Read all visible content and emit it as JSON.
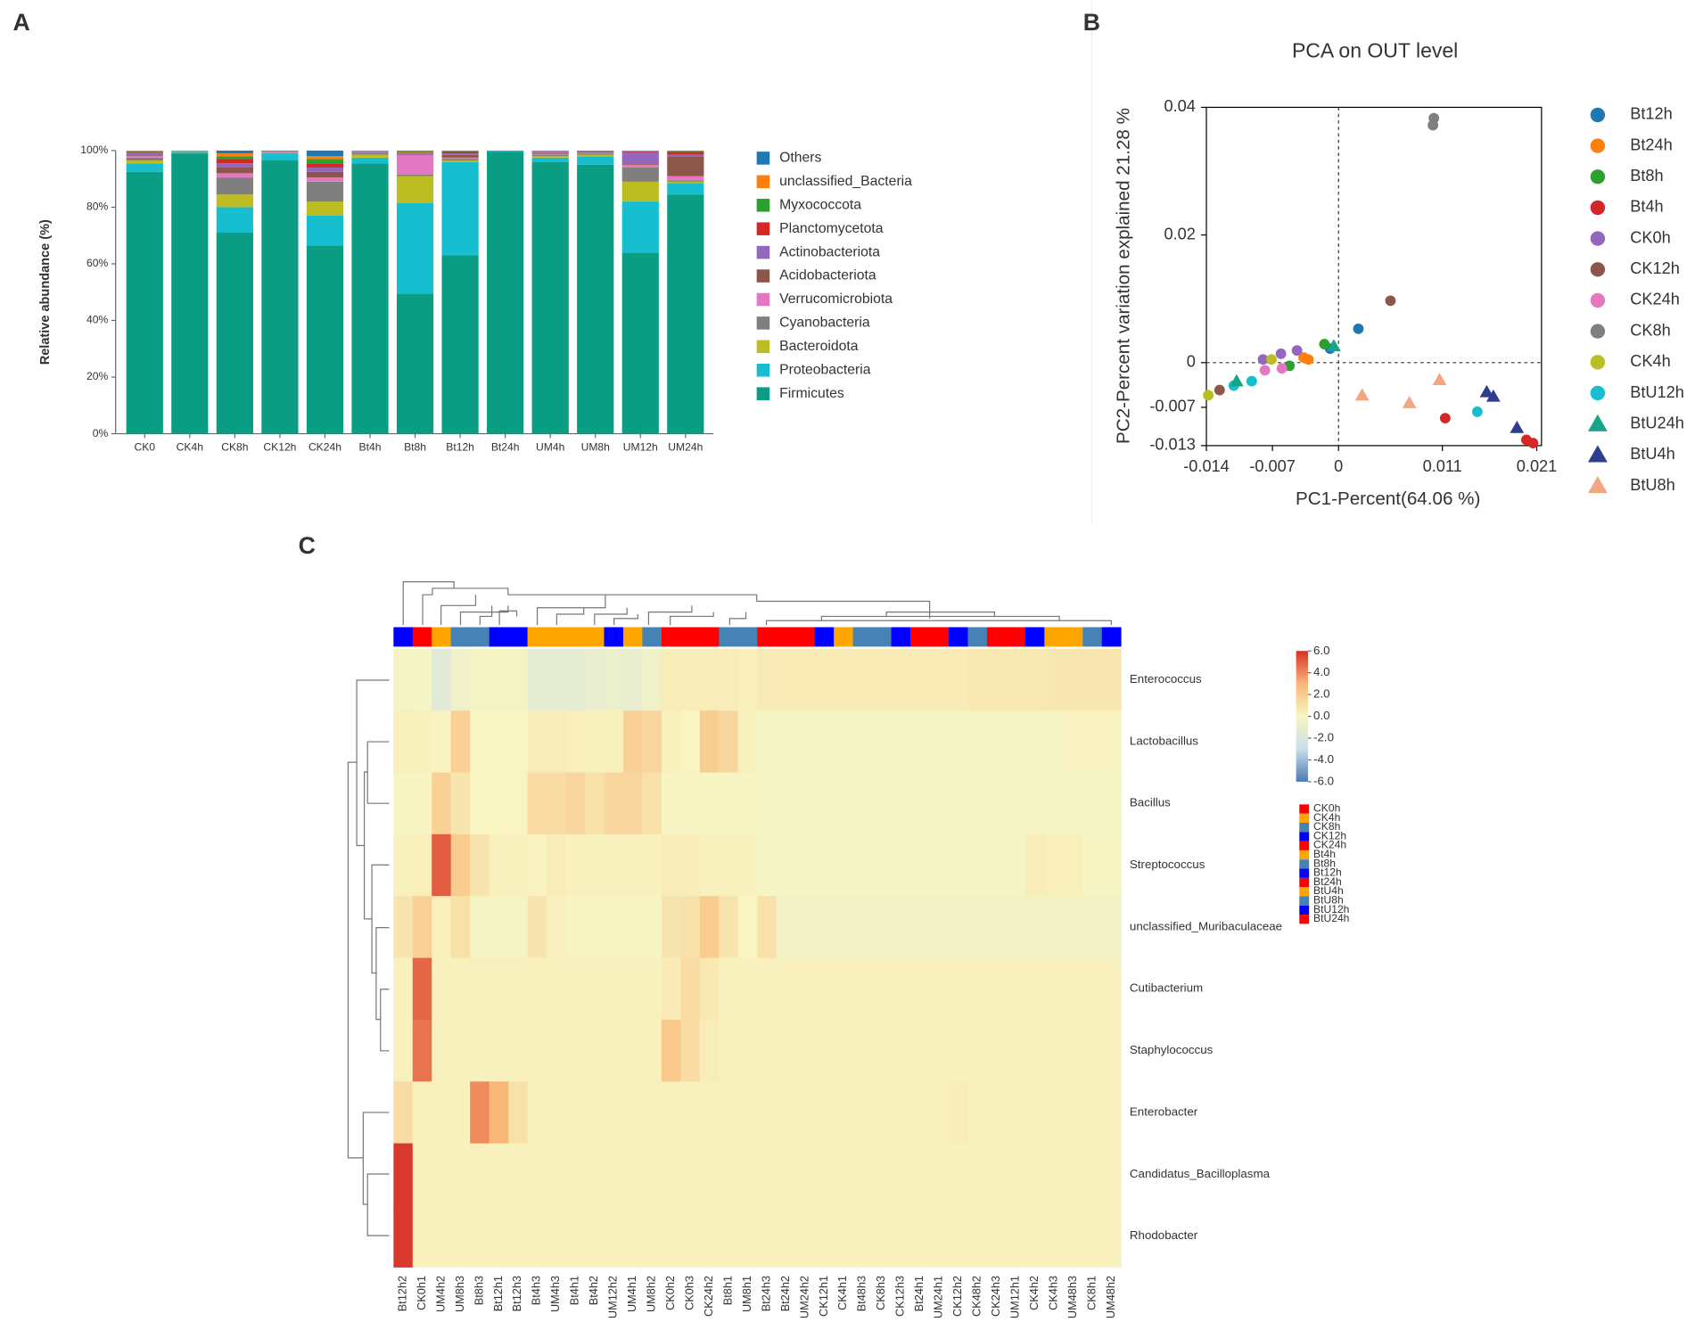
{
  "chart_data": [
    {
      "type": "bar",
      "stacked": true,
      "panel": "A",
      "ylabel": "Relative abundance (%)",
      "categories": [
        "CK0",
        "CK4h",
        "CK8h",
        "CK12h",
        "CK24h",
        "Bt4h",
        "Bt8h",
        "Bt12h",
        "Bt24h",
        "UM4h",
        "UM8h",
        "UM12h",
        "UM24h"
      ],
      "series": [
        {
          "name": "Firmicutes",
          "color": "#0a9d83",
          "values": [
            92.5,
            99,
            71,
            96.5,
            66.5,
            95.5,
            49.5,
            63,
            99.5,
            96,
            95,
            64,
            84.5
          ]
        },
        {
          "name": "Proteobacteria",
          "color": "#17becf",
          "values": [
            3,
            0.5,
            9,
            2.5,
            10.5,
            2,
            32,
            33,
            0.2,
            1.5,
            3,
            18,
            4
          ]
        },
        {
          "name": "Bacteroidota",
          "color": "#bcbd22",
          "values": [
            1,
            0.1,
            4.5,
            0.2,
            5,
            1,
            9.5,
            0.5,
            0.1,
            0.5,
            0.5,
            7,
            0.5
          ]
        },
        {
          "name": "Cyanobacteria",
          "color": "#7f7f7f",
          "values": [
            1,
            0.1,
            6,
            0.2,
            7,
            0.5,
            0.5,
            0.5,
            0,
            0.5,
            0.5,
            5,
            0.5
          ]
        },
        {
          "name": "Verrucomicrobiota",
          "color": "#e377c2",
          "values": [
            0.5,
            0,
            1.5,
            0.1,
            1.5,
            0.2,
            7,
            0.5,
            0,
            0.3,
            0.3,
            1,
            1.5
          ]
        },
        {
          "name": "Acidobacteriota",
          "color": "#8c564b",
          "values": [
            0.3,
            0,
            2,
            0,
            2,
            0.2,
            0.3,
            1,
            0,
            0.3,
            0.2,
            0.5,
            7
          ]
        },
        {
          "name": "Actinobacteriota",
          "color": "#9467bd",
          "values": [
            1,
            0.1,
            1.5,
            0.1,
            1.5,
            0.2,
            0.3,
            0.5,
            0,
            0.5,
            0.2,
            4,
            0.5
          ]
        },
        {
          "name": "Planctomycetota",
          "color": "#d62728",
          "values": [
            0.2,
            0,
            1.5,
            0,
            1.5,
            0.1,
            0.2,
            0.5,
            0,
            0.1,
            0.1,
            0.2,
            1
          ]
        },
        {
          "name": "Myxococcota",
          "color": "#2ca02c",
          "values": [
            0.2,
            0,
            1,
            0,
            1.5,
            0.1,
            0.2,
            0.2,
            0,
            0.1,
            0.1,
            0.1,
            0.3
          ]
        },
        {
          "name": "unclassified_Bacteria",
          "color": "#ff7f0e",
          "values": [
            0.3,
            0.1,
            1,
            0.2,
            1,
            0.1,
            0.3,
            0.1,
            0,
            0.1,
            0,
            0.1,
            0.1
          ]
        },
        {
          "name": "Others",
          "color": "#1f77b4",
          "values": [
            0,
            0.1,
            1,
            0.2,
            2,
            0.1,
            0.2,
            0.2,
            0.2,
            0.1,
            0.1,
            0.1,
            0.1
          ]
        }
      ],
      "ylim": [
        0,
        100
      ],
      "yticks": [
        {
          "value": 0,
          "label": "0%"
        },
        {
          "value": 20,
          "label": "20%"
        },
        {
          "value": 40,
          "label": "40%"
        },
        {
          "value": 60,
          "label": "60%"
        },
        {
          "value": 80,
          "label": "80%"
        },
        {
          "value": 100,
          "label": "100%"
        }
      ],
      "legend": "right"
    },
    {
      "type": "scatter",
      "panel": "B",
      "title": "PCA on OUT level",
      "xlabel": "PC1-Percent(64.06 %)",
      "ylabel": "PC2-Percent variation explained 21.28 %",
      "xlim": [
        -0.014,
        0.0215
      ],
      "ylim": [
        -0.013,
        0.04
      ],
      "xticks": [
        -0.014,
        -0.007,
        0,
        0.011,
        0.021
      ],
      "yticks": [
        -0.013,
        -0.007,
        0,
        0.02,
        0.04
      ],
      "dashed_zero_lines": true,
      "legend": "right",
      "series": [
        {
          "name": "Bt12h",
          "color": "#1f77b4",
          "marker": "circle",
          "x": [
            0.0021,
            -0.0009
          ],
          "y": [
            0.0053,
            0.0022
          ]
        },
        {
          "name": "Bt24h",
          "color": "#ff7f0e",
          "marker": "circle",
          "x": [
            -0.0032,
            -0.0037
          ],
          "y": [
            0.0005,
            0.0008
          ]
        },
        {
          "name": "Bt8h",
          "color": "#2ca02c",
          "marker": "circle",
          "x": [
            -0.0015,
            -0.0052
          ],
          "y": [
            0.0029,
            -0.0005
          ]
        },
        {
          "name": "Bt4h",
          "color": "#d62728",
          "marker": "circle",
          "x": [
            0.0113,
            0.0199,
            0.0206
          ],
          "y": [
            -0.0087,
            -0.0121,
            -0.0126
          ]
        },
        {
          "name": "CK0h",
          "color": "#9467bd",
          "marker": "circle",
          "x": [
            -0.008,
            -0.0044,
            -0.0061
          ],
          "y": [
            0.0005,
            0.0019,
            0.0014
          ]
        },
        {
          "name": "CK12h",
          "color": "#8c564b",
          "marker": "circle",
          "x": [
            0.0055,
            -0.0126
          ],
          "y": [
            0.0097,
            -0.0043
          ]
        },
        {
          "name": "CK24h",
          "color": "#e377c2",
          "marker": "circle",
          "x": [
            -0.0078,
            -0.006
          ],
          "y": [
            -0.0012,
            -0.0009
          ]
        },
        {
          "name": "CK8h",
          "color": "#7f7f7f",
          "marker": "circle",
          "x": [
            0.0101,
            0.01
          ],
          "y": [
            0.0383,
            0.0372
          ]
        },
        {
          "name": "CK4h",
          "color": "#bcbd22",
          "marker": "circle",
          "x": [
            -0.0138,
            -0.0071
          ],
          "y": [
            -0.0051,
            0.0005
          ]
        },
        {
          "name": "BtU12h",
          "color": "#17becf",
          "marker": "circle",
          "x": [
            0.0147,
            -0.0092,
            -0.0111
          ],
          "y": [
            -0.0077,
            -0.0029,
            -0.0036
          ]
        },
        {
          "name": "BtU24h",
          "color": "#17a589",
          "marker": "triangle",
          "x": [
            -0.0108,
            -0.0005
          ],
          "y": [
            -0.0029,
            0.0026
          ]
        },
        {
          "name": "BtU4h",
          "color": "#2c3e8c",
          "marker": "triangle",
          "x": [
            0.0157,
            0.0164,
            0.0189
          ],
          "y": [
            -0.0046,
            -0.0053,
            -0.0102
          ]
        },
        {
          "name": "BtU8h",
          "color": "#f4a582",
          "marker": "triangle",
          "x": [
            0.0025,
            0.0075,
            0.0107
          ],
          "y": [
            -0.0051,
            -0.0063,
            -0.0027
          ]
        }
      ]
    },
    {
      "type": "heatmap",
      "panel": "C",
      "x": [
        "Bt12h2",
        "CK0h1",
        "UM4h2",
        "UM8h3",
        "Bt8h3",
        "Bt12h1",
        "Bt12h3",
        "Bt4h3",
        "UM4h3",
        "Bt4h1",
        "Bt4h2",
        "UM12h2",
        "UM4h1",
        "UM8h2",
        "CK0h2",
        "CK0h3",
        "CK24h2",
        "Bt8h1",
        "UM8h1",
        "Bt24h3",
        "Bt24h2",
        "UM24h2",
        "CK12h1",
        "CK4h1",
        "Bt48h3",
        "CK8h3",
        "CK12h3",
        "Bt24h1",
        "UM24h1",
        "CK12h2",
        "CK48h2",
        "CK24h3",
        "UM12h1",
        "CK4h2",
        "CK4h3",
        "UM48h3",
        "CK8h1",
        "UM48h2"
      ],
      "y": [
        "Enterococcus",
        "Lactobacillus",
        "Bacillus",
        "Streptococcus",
        "unclassified_Muribaculaceae",
        "Cutibacterium",
        "Staphylococcus",
        "Enterobacter",
        "Candidatus_Bacilloplasma",
        "Rhodobacter"
      ],
      "z": [
        [
          -0.3,
          -0.2,
          -1.5,
          -0.5,
          -0.3,
          -0.3,
          -0.3,
          -1.2,
          -1.2,
          -1.2,
          -1.0,
          -0.8,
          -1.0,
          -0.5,
          0.4,
          0.4,
          0.4,
          0.4,
          0.3,
          0.5,
          0.5,
          0.5,
          0.5,
          0.5,
          0.5,
          0.5,
          0.5,
          0.5,
          0.5,
          0.5,
          0.6,
          0.6,
          0.6,
          0.6,
          0.7,
          0.7,
          0.7,
          0.7
        ],
        [
          0.3,
          0.2,
          0.1,
          1.8,
          0,
          0,
          0,
          0.4,
          0.4,
          0.3,
          0.2,
          0.2,
          1.8,
          1.5,
          0.3,
          0,
          2.0,
          1.5,
          0.2,
          -0.2,
          -0.2,
          -0.2,
          -0.2,
          -0.2,
          -0.2,
          -0.2,
          -0.2,
          -0.2,
          -0.2,
          -0.2,
          -0.2,
          -0.2,
          -0.2,
          -0.2,
          -0.2,
          0.1,
          0.1,
          0.1
        ],
        [
          -0.1,
          -0.1,
          1.8,
          0.8,
          0,
          0,
          0,
          1.2,
          1.2,
          1.5,
          1.0,
          1.5,
          1.5,
          1.0,
          -0.1,
          -0.1,
          -0.1,
          -0.1,
          -0.1,
          -0.2,
          -0.2,
          -0.2,
          -0.2,
          -0.2,
          -0.2,
          -0.2,
          -0.2,
          -0.2,
          -0.2,
          -0.2,
          -0.2,
          -0.2,
          -0.2,
          -0.2,
          -0.2,
          -0.2,
          -0.2,
          -0.2
        ],
        [
          0.2,
          0.3,
          5.0,
          2.0,
          0.8,
          0.2,
          0.2,
          0.1,
          0.4,
          0.2,
          0.2,
          0.2,
          0.2,
          0.2,
          0.4,
          0.4,
          0.2,
          0.2,
          0.2,
          -0.2,
          -0.2,
          -0.2,
          -0.2,
          -0.2,
          -0.2,
          -0.2,
          -0.2,
          -0.2,
          -0.2,
          -0.2,
          -0.2,
          -0.2,
          -0.2,
          0.4,
          0.3,
          0.3,
          -0.1,
          -0.1
        ],
        [
          0.8,
          1.8,
          0.3,
          1.0,
          -0.2,
          -0.2,
          -0.2,
          0.8,
          0.2,
          -0.1,
          -0.1,
          -0.1,
          -0.1,
          -0.1,
          0.8,
          1.0,
          2.0,
          0.8,
          0,
          1.0,
          -0.4,
          -0.4,
          -0.4,
          -0.4,
          -0.4,
          -0.4,
          -0.4,
          -0.4,
          -0.4,
          -0.4,
          -0.4,
          -0.4,
          -0.4,
          -0.4,
          -0.4,
          -0.4,
          -0.4,
          -0.4
        ],
        [
          0.2,
          4.8,
          0.2,
          0.2,
          0.2,
          0.2,
          0.2,
          0.2,
          0.2,
          0.2,
          0.2,
          0.2,
          0.2,
          0.2,
          0.5,
          1.2,
          0.6,
          0.2,
          0.2,
          0.2,
          0.2,
          0.2,
          0.2,
          0.2,
          0.2,
          0.2,
          0.2,
          0.2,
          0.2,
          0.2,
          0.2,
          0.2,
          0.2,
          0.2,
          0.2,
          0.2,
          0.2,
          0.2
        ],
        [
          0.2,
          4.5,
          0.2,
          0.2,
          0.2,
          0.2,
          0.2,
          0.2,
          0.2,
          0.2,
          0.2,
          0.2,
          0.2,
          0.2,
          2.2,
          1.2,
          0.4,
          0.2,
          0.2,
          0.2,
          0.2,
          0.2,
          0.2,
          0.2,
          0.2,
          0.2,
          0.2,
          0.2,
          0.2,
          0.2,
          0.2,
          0.2,
          0.2,
          0.2,
          0.2,
          0.2,
          0.2,
          0.2
        ],
        [
          1.2,
          0.2,
          0.2,
          0.2,
          4.0,
          3.0,
          1.0,
          0.2,
          0.2,
          0.2,
          0.2,
          0.2,
          0.2,
          0.2,
          0.2,
          0.2,
          0.2,
          0.2,
          0.2,
          0.2,
          0.2,
          0.2,
          0.2,
          0.2,
          0.2,
          0.2,
          0.2,
          0.2,
          0.2,
          0.4,
          0.2,
          0.2,
          0.2,
          0.2,
          0.2,
          0.2,
          0.2,
          0.2
        ],
        [
          5.8,
          0.2,
          0.2,
          0.2,
          0.2,
          0.2,
          0.2,
          0.2,
          0.2,
          0.2,
          0.2,
          0.2,
          0.2,
          0.2,
          0.2,
          0.2,
          0.2,
          0.2,
          0.2,
          0.2,
          0.2,
          0.2,
          0.2,
          0.2,
          0.2,
          0.2,
          0.2,
          0.2,
          0.2,
          0.2,
          0.2,
          0.2,
          0.2,
          0.2,
          0.2,
          0.2,
          0.2,
          0.2
        ],
        [
          5.8,
          0.2,
          0.2,
          0.2,
          0.2,
          0.2,
          0.2,
          0.2,
          0.2,
          0.2,
          0.2,
          0.2,
          0.2,
          0.2,
          0.2,
          0.2,
          0.2,
          0.2,
          0.2,
          0.2,
          0.2,
          0.2,
          0.2,
          0.2,
          0.2,
          0.2,
          0.2,
          0.2,
          0.2,
          0.2,
          0.2,
          0.2,
          0.2,
          0.2,
          0.2,
          0.2,
          0.2,
          0.2
        ]
      ],
      "zlim": [
        -6,
        6
      ],
      "zticks": [
        {
          "value": 6,
          "label": "6.0"
        },
        {
          "value": 4,
          "label": "4.0"
        },
        {
          "value": 2,
          "label": "2.0"
        },
        {
          "value": 0,
          "label": "0.0"
        },
        {
          "value": -2,
          "label": "-2.0"
        },
        {
          "value": -4,
          "label": "-4.0"
        },
        {
          "value": -6,
          "label": "-6.0"
        }
      ],
      "colors": [
        "#4a7ab5",
        "#c9dfe9",
        "#f8f5c2",
        "#f9b777",
        "#d73027"
      ],
      "annotation_colors": [
        "#0000ff",
        "#ff0000",
        "#ffa500",
        "#4682b4",
        "#4682b4",
        "#0000ff",
        "#0000ff",
        "#ffa500",
        "#ffa500",
        "#ffa500",
        "#ffa500",
        "#0000ff",
        "#ffa500",
        "#4682b4",
        "#ff0000",
        "#ff0000",
        "#ff0000",
        "#4682b4",
        "#4682b4",
        "#ff0000",
        "#ff0000",
        "#ff0000",
        "#0000ff",
        "#ffa500",
        "#4682b4",
        "#4682b4",
        "#0000ff",
        "#ff0000",
        "#ff0000",
        "#0000ff",
        "#4682b4",
        "#ff0000",
        "#ff0000",
        "#0000ff",
        "#ffa500",
        "#ffa500",
        "#4682b4",
        "#0000ff"
      ],
      "groups": [
        {
          "name": "CK0h",
          "color": "#ff0000"
        },
        {
          "name": "CK4h",
          "color": "#ffa500"
        },
        {
          "name": "CK8h",
          "color": "#4682b4"
        },
        {
          "name": "CK12h",
          "color": "#0000ff"
        },
        {
          "name": "CK24h",
          "color": "#ff0000"
        },
        {
          "name": "Bt4h",
          "color": "#ffa500"
        },
        {
          "name": "Bt8h",
          "color": "#4682b4"
        },
        {
          "name": "Bt12h",
          "color": "#0000ff"
        },
        {
          "name": "Bt24h",
          "color": "#ff0000"
        },
        {
          "name": "BtU4h",
          "color": "#ffa500"
        },
        {
          "name": "BtU8h",
          "color": "#4682b4"
        },
        {
          "name": "BtU12h",
          "color": "#0000ff"
        },
        {
          "name": "BtU24h",
          "color": "#ff0000"
        }
      ]
    }
  ]
}
